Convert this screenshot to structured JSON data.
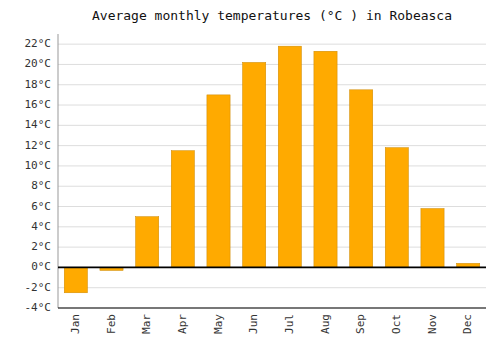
{
  "chart_data": {
    "type": "bar",
    "title": "Average monthly temperatures (°C ) in Robeasca",
    "categories": [
      "Jan",
      "Feb",
      "Mar",
      "Apr",
      "May",
      "Jun",
      "Jul",
      "Aug",
      "Sep",
      "Oct",
      "Nov",
      "Dec"
    ],
    "values": [
      -2.5,
      -0.3,
      5.0,
      11.5,
      17.0,
      20.2,
      21.8,
      21.3,
      17.5,
      11.8,
      5.8,
      0.4
    ],
    "color": "#FFAA00",
    "ylim": [
      -4,
      23
    ],
    "yticks": [
      {
        "value": -4,
        "label": "-4°C"
      },
      {
        "value": -2,
        "label": "-2°C"
      },
      {
        "value": 0,
        "label": "0°C"
      },
      {
        "value": 2,
        "label": "2°C"
      },
      {
        "value": 4,
        "label": "4°C"
      },
      {
        "value": 6,
        "label": "6°C"
      },
      {
        "value": 8,
        "label": "8°C"
      },
      {
        "value": 10,
        "label": "10°C"
      },
      {
        "value": 12,
        "label": "12°C"
      },
      {
        "value": 14,
        "label": "14°C"
      },
      {
        "value": 16,
        "label": "16°C"
      },
      {
        "value": 18,
        "label": "18°C"
      },
      {
        "value": 20,
        "label": "20°C"
      },
      {
        "value": 22,
        "label": "22°C"
      }
    ],
    "grid": true
  }
}
